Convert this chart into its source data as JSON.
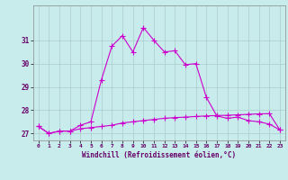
{
  "xlabel": "Windchill (Refroidissement éolien,°C)",
  "ylabel": "",
  "background_color": "#c8ecec",
  "grid_color": "#aacccc",
  "line_color": "#cc00cc",
  "spine_color": "#888888",
  "xlim": [
    -0.5,
    23.5
  ],
  "ylim": [
    26.7,
    32.5
  ],
  "yticks": [
    27,
    28,
    29,
    30,
    31
  ],
  "xticks": [
    0,
    1,
    2,
    3,
    4,
    5,
    6,
    7,
    8,
    9,
    10,
    11,
    12,
    13,
    14,
    15,
    16,
    17,
    18,
    19,
    20,
    21,
    22,
    23
  ],
  "hours": [
    0,
    1,
    2,
    3,
    4,
    5,
    6,
    7,
    8,
    9,
    10,
    11,
    12,
    13,
    14,
    15,
    16,
    17,
    18,
    19,
    20,
    21,
    22,
    23
  ],
  "line1": [
    27.3,
    27.0,
    27.1,
    27.1,
    27.35,
    27.5,
    29.3,
    30.75,
    31.2,
    30.5,
    31.55,
    31.0,
    30.5,
    30.55,
    29.95,
    30.0,
    28.55,
    27.75,
    27.65,
    27.7,
    27.55,
    27.5,
    27.4,
    27.15
  ],
  "line2": [
    27.3,
    27.0,
    27.1,
    27.1,
    27.2,
    27.25,
    27.3,
    27.35,
    27.45,
    27.5,
    27.55,
    27.6,
    27.65,
    27.68,
    27.7,
    27.73,
    27.75,
    27.77,
    27.78,
    27.8,
    27.82,
    27.84,
    27.85,
    27.15
  ],
  "marker": "+",
  "markersize": 4,
  "linewidth": 0.8
}
